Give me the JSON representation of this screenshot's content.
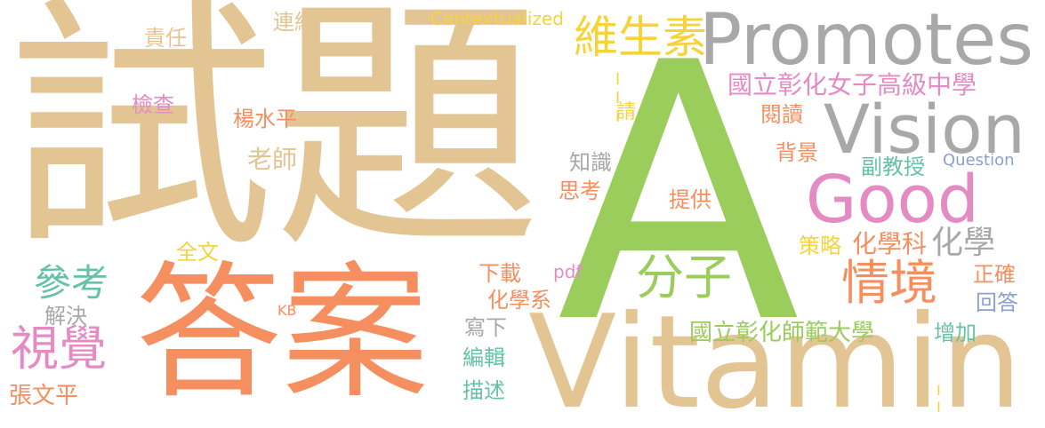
{
  "palette": {
    "tan": "#E3C594",
    "green": "#9ACD5B",
    "orange": "#F58F5F",
    "pink": "#E58BC4",
    "gray": "#A8A8A8",
    "teal": "#66C2A5",
    "yellow": "#F5D33B",
    "blue": "#8DA0CB"
  },
  "words": {
    "shiti": "試題",
    "a": "A",
    "daan": "答案",
    "vitamin": "Vitamin",
    "promotes": "Promotes",
    "vision": "Vision",
    "good": "Good",
    "weishengsu": "維生素",
    "fenzi": "分子",
    "qingjing": "情境",
    "shijue": "視覺",
    "cankao": "參考",
    "guoli_nuzi": "國立彰化女子高級中學",
    "guoli_shida": "國立彰化師範大學",
    "huaxueke": "化學科",
    "huaxue": "化學",
    "contextualized": "Contextualized",
    "zeren": "責任",
    "lianjie": "連結",
    "jiancha": "檢查",
    "yangshuiping": "楊水平",
    "laoshi": "老師",
    "zhishi": "知識",
    "sikao": "思考",
    "tigong": "提供",
    "beijing": "背景",
    "fujiaoshou": "副教授",
    "question": "Question",
    "yuedu": "閱讀",
    "qing": "請",
    "roman3": "III",
    "quanwen": "全文",
    "jiejue": "解決",
    "kb": "KB",
    "xiazai": "下載",
    "pdf": "pdf",
    "huaxuexi": "化學系",
    "xiexia": "寫下",
    "bianji": "編輯",
    "miaoshu": "描述",
    "celue": "策略",
    "zhengque": "正確",
    "huida": "回答",
    "zengjia": "增加",
    "roman2": "II",
    "zhangwenping": "張文平"
  }
}
